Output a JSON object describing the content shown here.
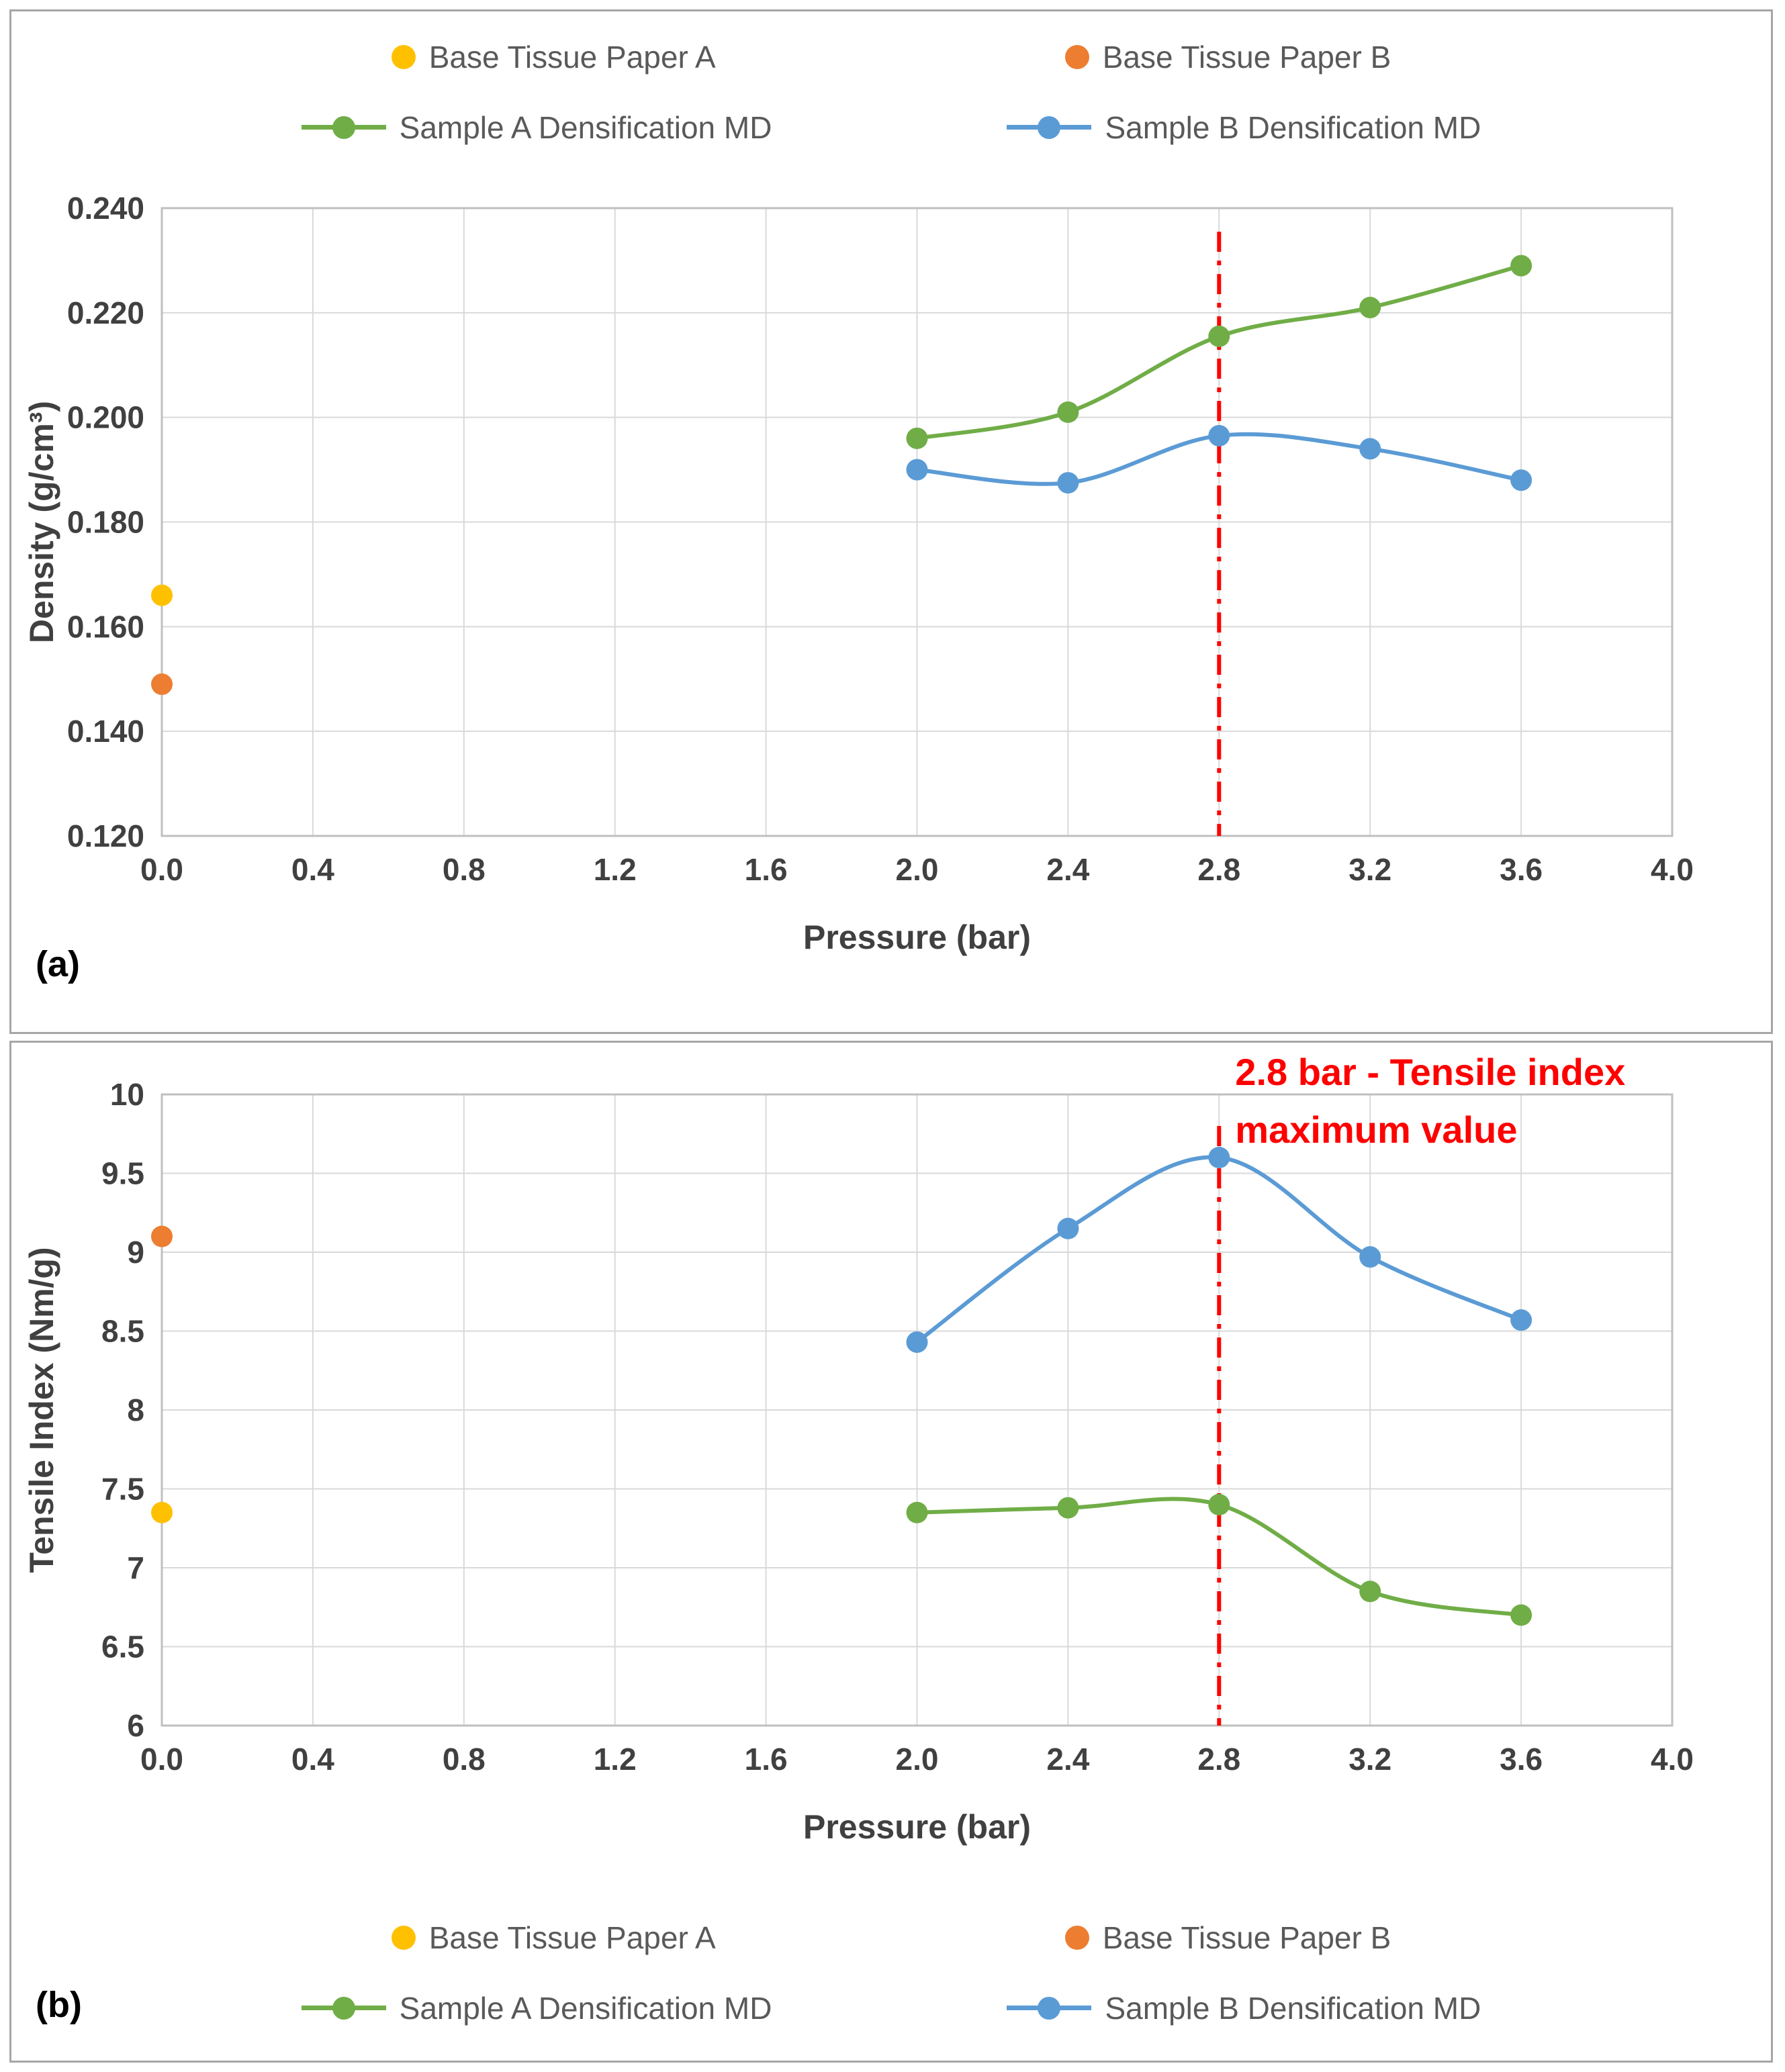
{
  "figure": {
    "panel_a_label": "(a)",
    "panel_b_label": "(b)"
  },
  "legend": {
    "items": [
      {
        "label": "Base Tissue Paper A",
        "color": "#FFC000",
        "marker": "dot"
      },
      {
        "label": "Base Tissue Paper B",
        "color": "#ED7D31",
        "marker": "dot"
      },
      {
        "label": "Sample A Densification MD",
        "color": "#70AD47",
        "marker": "line-dot"
      },
      {
        "label": "Sample B Densification MD",
        "color": "#5B9BD5",
        "marker": "line-dot"
      }
    ]
  },
  "colors": {
    "grid": "#D9D9D9",
    "plot_border": "#BFBFBF",
    "tick_text": "#404040",
    "legend_text": "#595959",
    "panel_border": "#A6A6A6",
    "vline_red": "#FF0000"
  },
  "chart_data": [
    {
      "type": "line",
      "panel": "a",
      "title": "",
      "xlabel": "Pressure (bar)",
      "ylabel": "Density (g/cm³)",
      "xlim": [
        0,
        4
      ],
      "ylim": [
        0.12,
        0.24
      ],
      "xticks": [
        0,
        0.4,
        0.8,
        1.2,
        1.6,
        2,
        2.4,
        2.8,
        3.2,
        3.6,
        4
      ],
      "xtick_labels": [
        "0.0",
        "0.4",
        "0.8",
        "1.2",
        "1.6",
        "2.0",
        "2.4",
        "2.8",
        "3.2",
        "3.6",
        "4.0"
      ],
      "yticks": [
        0.12,
        0.14,
        0.16,
        0.18,
        0.2,
        0.22,
        0.24
      ],
      "ytick_labels": [
        "0.120",
        "0.140",
        "0.160",
        "0.180",
        "0.200",
        "0.220",
        "0.240"
      ],
      "grid": true,
      "legend_position": "top",
      "series": [
        {
          "name": "Base Tissue Paper A",
          "type": "scatter",
          "color": "#FFC000",
          "x": [
            0
          ],
          "y": [
            0.166
          ]
        },
        {
          "name": "Base Tissue Paper B",
          "type": "scatter",
          "color": "#ED7D31",
          "x": [
            0
          ],
          "y": [
            0.149
          ]
        },
        {
          "name": "Sample A Densification MD",
          "type": "line",
          "color": "#70AD47",
          "x": [
            2,
            2.4,
            2.8,
            3.2,
            3.6
          ],
          "y": [
            0.196,
            0.201,
            0.2155,
            0.221,
            0.229
          ]
        },
        {
          "name": "Sample B Densification MD",
          "type": "line",
          "color": "#5B9BD5",
          "x": [
            2,
            2.4,
            2.8,
            3.2,
            3.6
          ],
          "y": [
            0.19,
            0.1875,
            0.1965,
            0.194,
            0.188
          ]
        }
      ],
      "vline": {
        "x": 2.8,
        "y_from": 0.2355,
        "y_to": 0.12,
        "color": "#FF0000",
        "style": "dash-dot"
      },
      "annotation": null
    },
    {
      "type": "line",
      "panel": "b",
      "title": "",
      "xlabel": "Pressure (bar)",
      "ylabel": "Tensile Index (Nm/g)",
      "xlim": [
        0,
        4
      ],
      "ylim": [
        6,
        10
      ],
      "xticks": [
        0,
        0.4,
        0.8,
        1.2,
        1.6,
        2,
        2.4,
        2.8,
        3.2,
        3.6,
        4
      ],
      "xtick_labels": [
        "0.0",
        "0.4",
        "0.8",
        "1.2",
        "1.6",
        "2.0",
        "2.4",
        "2.8",
        "3.2",
        "3.6",
        "4.0"
      ],
      "yticks": [
        6,
        6.5,
        7,
        7.5,
        8,
        8.5,
        9,
        9.5,
        10
      ],
      "ytick_labels": [
        "6",
        "6.5",
        "7",
        "7.5",
        "8",
        "8.5",
        "9",
        "9.5",
        "10"
      ],
      "grid": true,
      "legend_position": "bottom",
      "series": [
        {
          "name": "Base Tissue Paper A",
          "type": "scatter",
          "color": "#FFC000",
          "x": [
            0
          ],
          "y": [
            7.35
          ]
        },
        {
          "name": "Base Tissue Paper B",
          "type": "scatter",
          "color": "#ED7D31",
          "x": [
            0
          ],
          "y": [
            9.1
          ]
        },
        {
          "name": "Sample A Densification MD",
          "type": "line",
          "color": "#70AD47",
          "x": [
            2,
            2.4,
            2.8,
            3.2,
            3.6
          ],
          "y": [
            7.35,
            7.38,
            7.4,
            6.85,
            6.7
          ]
        },
        {
          "name": "Sample B Densification MD",
          "type": "line",
          "color": "#5B9BD5",
          "x": [
            2,
            2.4,
            2.8,
            3.2,
            3.6
          ],
          "y": [
            8.43,
            9.15,
            9.6,
            8.97,
            8.57
          ]
        }
      ],
      "vline": {
        "x": 2.8,
        "y_from": 9.8,
        "y_to": 6,
        "color": "#FF0000",
        "style": "dash-dot"
      },
      "annotation": {
        "text_lines": [
          "2.8 bar - Tensile index",
          "maximum value"
        ],
        "color": "#FF0000"
      }
    }
  ]
}
